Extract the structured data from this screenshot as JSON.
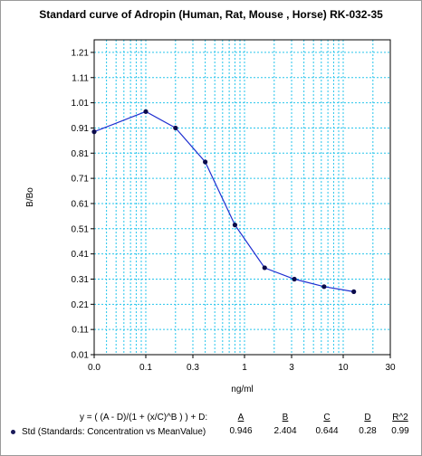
{
  "chart_data": {
    "type": "line",
    "title": "Standard curve of Adropin (Human, Rat, Mouse , Horse) RK-032-35",
    "xlabel": "ng/ml",
    "ylabel": "B/Bo",
    "x_scale": "log",
    "x_ticks": [
      "0.0",
      "0.1",
      "0.3",
      "1",
      "3",
      "10",
      "30"
    ],
    "y_ticks": [
      "0.01",
      "0.11",
      "0.21",
      "0.31",
      "0.41",
      "0.51",
      "0.61",
      "0.71",
      "0.81",
      "0.91",
      "1.01",
      "1.11",
      "1.21"
    ],
    "ylim": [
      0.01,
      1.26
    ],
    "grid": true,
    "series": [
      {
        "name": "Std (Standards: Concentration vs MeanValue)",
        "color": "#1f2fd0",
        "marker_color": "#0a0a4a",
        "x": [
          0.03,
          0.1,
          0.2,
          0.4,
          0.8,
          1.6,
          3.2,
          6.4,
          12.8
        ],
        "y": [
          0.895,
          0.975,
          0.91,
          0.775,
          0.525,
          0.355,
          0.31,
          0.28,
          0.26
        ]
      }
    ],
    "equation": "y = ( (A - D)/(1 + (x/C)^B ) ) + D:",
    "params": [
      {
        "name": "A",
        "value": "0.946"
      },
      {
        "name": "B",
        "value": "2.404"
      },
      {
        "name": "C",
        "value": "0.644"
      },
      {
        "name": "D",
        "value": "0.28"
      },
      {
        "name": "R^2",
        "value": "0.99"
      }
    ]
  }
}
